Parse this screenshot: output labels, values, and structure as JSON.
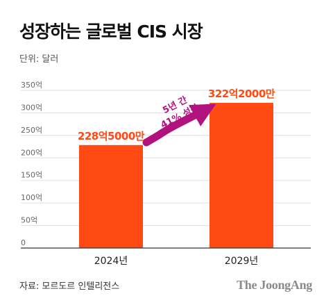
{
  "header": {
    "title": "성장하는 글로벌 CIS 시장",
    "unit": "단위: 달러"
  },
  "chart_data": {
    "type": "bar",
    "categories": [
      "2024년",
      "2029년"
    ],
    "values": [
      228.5,
      322.2
    ],
    "data_labels": [
      "228억5000만",
      "322억2000만"
    ],
    "ylim": [
      0,
      350
    ],
    "yticks": [
      0,
      50,
      100,
      150,
      200,
      250,
      300,
      350
    ],
    "ytick_labels": [
      "0",
      "50억",
      "100억",
      "150억",
      "200억",
      "250억",
      "300억",
      "350억"
    ],
    "grid": true,
    "annotation": {
      "line1": "5년 간",
      "line2": "41% 성장"
    }
  },
  "footer": {
    "source": "자료: 모르도르 인텔리전스",
    "logo": "The JoongAng"
  },
  "colors": {
    "bar": "#FF4A14",
    "label": "#FF4A14",
    "arrow": "#B0127E",
    "grid": "#DDDDDD",
    "axis": "#333333",
    "tick": "#666666"
  }
}
